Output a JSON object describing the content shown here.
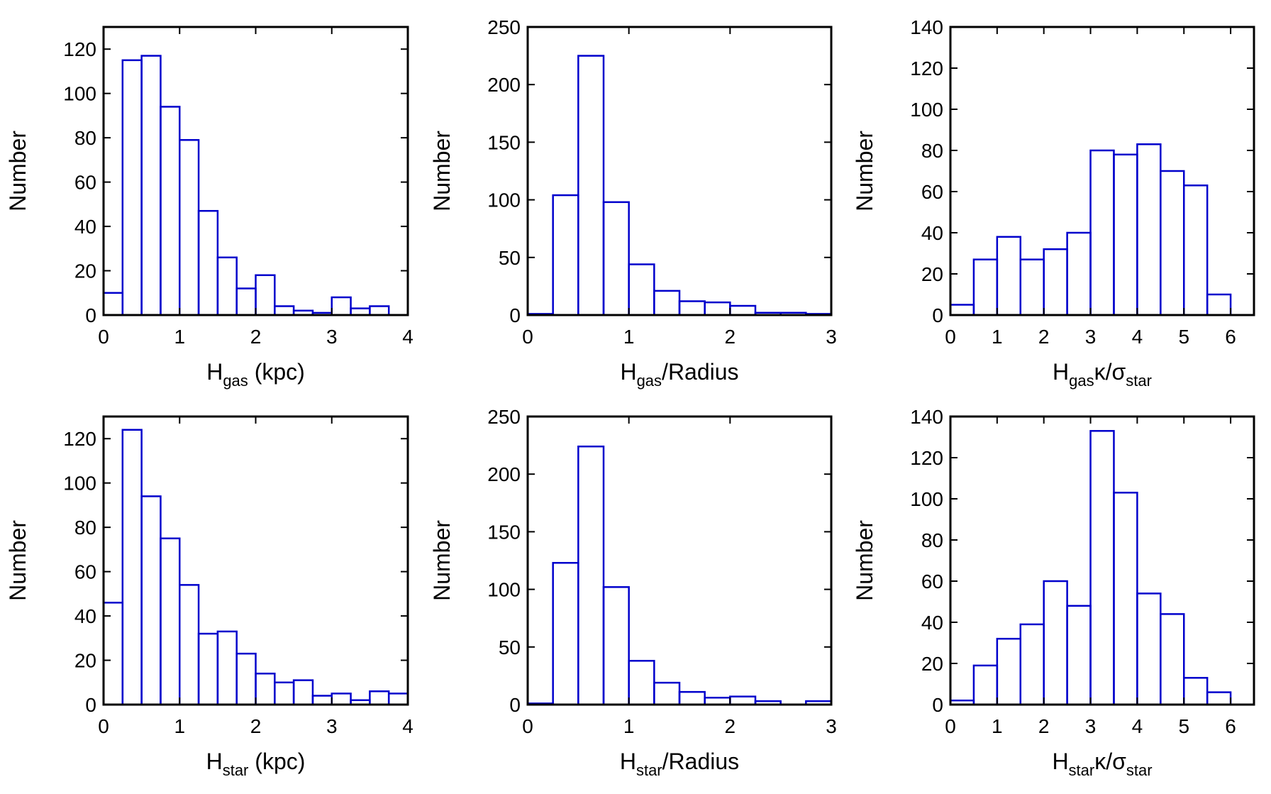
{
  "colors": {
    "bar": "#0000CC",
    "axis": "#000000",
    "background": "#FFFFFF"
  },
  "chart_data": [
    {
      "type": "bar",
      "title": "",
      "xlabel": {
        "main": "H",
        "sub": "gas",
        "rest": " (kpc)"
      },
      "ylabel": "Number",
      "bin_edges": [
        0,
        0.25,
        0.5,
        0.75,
        1.0,
        1.25,
        1.5,
        1.75,
        2.0,
        2.25,
        2.5,
        2.75,
        3.0,
        3.25,
        3.5,
        3.75,
        4.0
      ],
      "values": [
        10,
        115,
        117,
        94,
        79,
        47,
        26,
        12,
        18,
        4,
        2,
        1,
        8,
        3,
        4,
        0
      ],
      "xlim": [
        0,
        4
      ],
      "ylim": [
        0,
        130
      ],
      "xticks": [
        0,
        1,
        2,
        3,
        4
      ],
      "yticks": [
        0,
        20,
        40,
        60,
        80,
        100,
        120
      ]
    },
    {
      "type": "bar",
      "title": "",
      "xlabel": {
        "main": "H",
        "sub": "gas",
        "rest": "/Radius"
      },
      "ylabel": "Number",
      "bin_edges": [
        0,
        0.25,
        0.5,
        0.75,
        1.0,
        1.25,
        1.5,
        1.75,
        2.0,
        2.25,
        2.5,
        2.75,
        3.0
      ],
      "values": [
        1,
        104,
        225,
        98,
        44,
        21,
        12,
        11,
        8,
        2,
        2,
        1
      ],
      "xlim": [
        0,
        3
      ],
      "ylim": [
        0,
        250
      ],
      "xticks": [
        0,
        1,
        2,
        3
      ],
      "yticks": [
        0,
        50,
        100,
        150,
        200,
        250
      ]
    },
    {
      "type": "bar",
      "title": "",
      "xlabel": {
        "main": "H",
        "sub": "gas",
        "rest": "κ/σ",
        "sub2": "star"
      },
      "ylabel": "Number",
      "bin_edges": [
        0,
        0.5,
        1.0,
        1.5,
        2.0,
        2.5,
        3.0,
        3.5,
        4.0,
        4.5,
        5.0,
        5.5,
        6.0
      ],
      "values": [
        5,
        27,
        38,
        27,
        32,
        40,
        80,
        78,
        83,
        70,
        63,
        10
      ],
      "xlim": [
        0,
        6.5
      ],
      "ylim": [
        0,
        140
      ],
      "xticks": [
        0,
        1,
        2,
        3,
        4,
        5,
        6
      ],
      "yticks": [
        0,
        20,
        40,
        60,
        80,
        100,
        120,
        140
      ]
    },
    {
      "type": "bar",
      "title": "",
      "xlabel": {
        "main": "H",
        "sub": "star",
        "rest": " (kpc)"
      },
      "ylabel": "Number",
      "bin_edges": [
        0,
        0.25,
        0.5,
        0.75,
        1.0,
        1.25,
        1.5,
        1.75,
        2.0,
        2.25,
        2.5,
        2.75,
        3.0,
        3.25,
        3.5,
        3.75,
        4.0
      ],
      "values": [
        46,
        124,
        94,
        75,
        54,
        32,
        33,
        23,
        14,
        10,
        11,
        4,
        5,
        2,
        6,
        5
      ],
      "xlim": [
        0,
        4
      ],
      "ylim": [
        0,
        130
      ],
      "xticks": [
        0,
        1,
        2,
        3,
        4
      ],
      "yticks": [
        0,
        20,
        40,
        60,
        80,
        100,
        120
      ]
    },
    {
      "type": "bar",
      "title": "",
      "xlabel": {
        "main": "H",
        "sub": "star",
        "rest": "/Radius"
      },
      "ylabel": "Number",
      "bin_edges": [
        0,
        0.25,
        0.5,
        0.75,
        1.0,
        1.25,
        1.5,
        1.75,
        2.0,
        2.25,
        2.5,
        2.75,
        3.0
      ],
      "values": [
        1,
        123,
        224,
        102,
        38,
        19,
        11,
        6,
        7,
        3,
        0,
        3
      ],
      "xlim": [
        0,
        3
      ],
      "ylim": [
        0,
        250
      ],
      "xticks": [
        0,
        1,
        2,
        3
      ],
      "yticks": [
        0,
        50,
        100,
        150,
        200,
        250
      ]
    },
    {
      "type": "bar",
      "title": "",
      "xlabel": {
        "main": "H",
        "sub": "star",
        "rest": "κ/σ",
        "sub2": "star"
      },
      "ylabel": "Number",
      "bin_edges": [
        0,
        0.5,
        1.0,
        1.5,
        2.0,
        2.5,
        3.0,
        3.5,
        4.0,
        4.5,
        5.0,
        5.5,
        6.0
      ],
      "values": [
        2,
        19,
        32,
        39,
        60,
        48,
        133,
        103,
        54,
        44,
        13,
        6
      ],
      "xlim": [
        0,
        6.5
      ],
      "ylim": [
        0,
        140
      ],
      "xticks": [
        0,
        1,
        2,
        3,
        4,
        5,
        6
      ],
      "yticks": [
        0,
        20,
        40,
        60,
        80,
        100,
        120,
        140
      ]
    }
  ]
}
